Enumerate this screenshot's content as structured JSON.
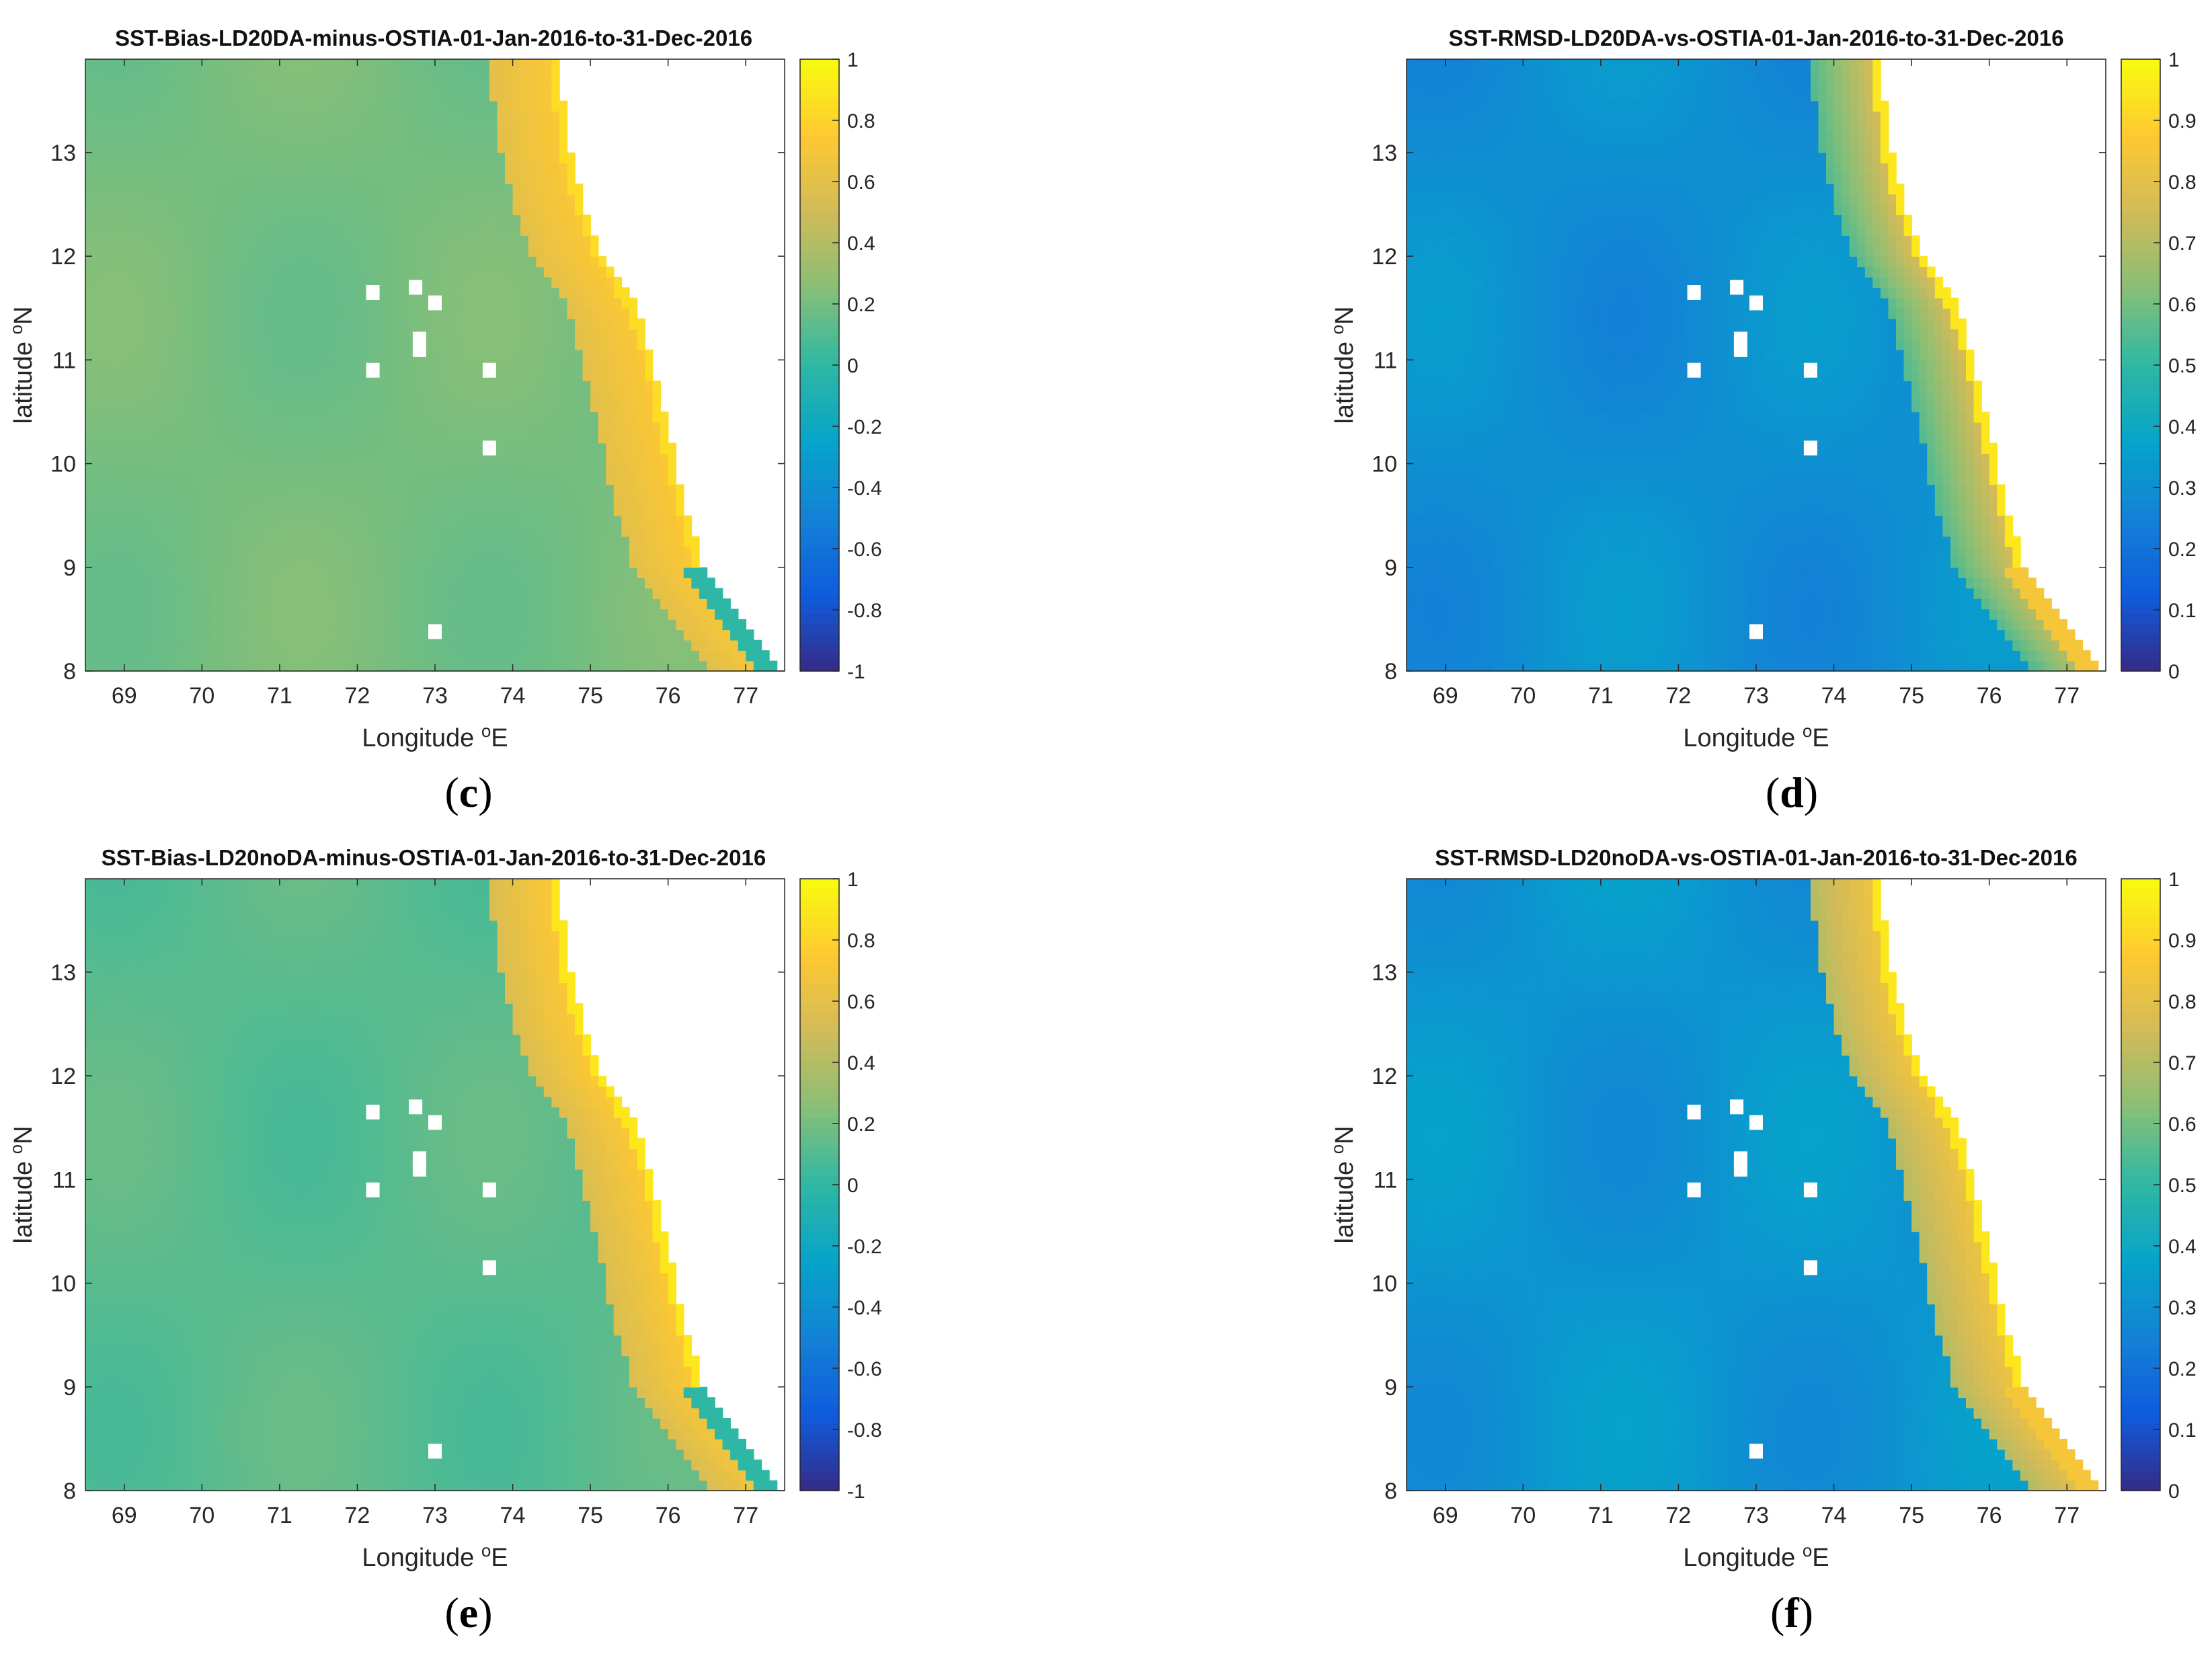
{
  "chart_data": [
    {
      "type": "heatmap",
      "panel": "c",
      "title": "SST-Bias-LD20DA-minus-OSTIA-01-Jan-2016-to-31-Dec-2016",
      "xlabel": "Longitude",
      "xlabel_sup": "o",
      "xlabel_unit": "E",
      "ylabel": "latitude",
      "ylabel_sup": "o",
      "ylabel_unit": "N",
      "xlim": [
        68.5,
        77.5
      ],
      "ylim": [
        8,
        13.9
      ],
      "xticks": [
        "69",
        "70",
        "71",
        "72",
        "73",
        "74",
        "75",
        "76",
        "77"
      ],
      "yticks": [
        "8",
        "9",
        "10",
        "11",
        "12",
        "13"
      ],
      "colorbar_range": [
        -1,
        1
      ],
      "colorbar_ticks": [
        "-1",
        "-0.8",
        "-0.6",
        "-0.4",
        "-0.2",
        "0",
        "0.2",
        "0.4",
        "0.6",
        "0.8",
        "1"
      ],
      "offshore_value": 0.2,
      "coastal_band_value": 0.6,
      "coast_edge_value": 0.85,
      "southern_coast_value": 0.0,
      "caption_letter": "c"
    },
    {
      "type": "heatmap",
      "panel": "d",
      "title": "SST-RMSD-LD20DA-vs-OSTIA-01-Jan-2016-to-31-Dec-2016",
      "xlabel": "Longitude",
      "xlabel_sup": "o",
      "xlabel_unit": "E",
      "ylabel": "latitude",
      "ylabel_sup": "o",
      "ylabel_unit": "N",
      "xlim": [
        68.5,
        77.5
      ],
      "ylim": [
        8,
        13.9
      ],
      "xticks": [
        "69",
        "70",
        "71",
        "72",
        "73",
        "74",
        "75",
        "76",
        "77"
      ],
      "yticks": [
        "8",
        "9",
        "10",
        "11",
        "12",
        "13"
      ],
      "colorbar_range": [
        0,
        1
      ],
      "colorbar_ticks": [
        "0",
        "0.1",
        "0.2",
        "0.3",
        "0.4",
        "0.5",
        "0.6",
        "0.7",
        "0.8",
        "0.9",
        "1"
      ],
      "offshore_value": 0.3,
      "coastal_band_value": 0.55,
      "coast_edge_value": 0.95,
      "southern_coast_value": 0.85,
      "caption_letter": "d"
    },
    {
      "type": "heatmap",
      "panel": "e",
      "title": "SST-Bias-LD20noDA-minus-OSTIA-01-Jan-2016-to-31-Dec-2016",
      "xlabel": "Longitude",
      "xlabel_sup": "o",
      "xlabel_unit": "E",
      "ylabel": "latitude",
      "ylabel_sup": "o",
      "ylabel_unit": "N",
      "xlim": [
        68.5,
        77.5
      ],
      "ylim": [
        8,
        13.9
      ],
      "xticks": [
        "69",
        "70",
        "71",
        "72",
        "73",
        "74",
        "75",
        "76",
        "77"
      ],
      "yticks": [
        "8",
        "9",
        "10",
        "11",
        "12",
        "13"
      ],
      "colorbar_range": [
        -1,
        1
      ],
      "colorbar_ticks": [
        "-1",
        "-0.8",
        "-0.6",
        "-0.4",
        "-0.2",
        "0",
        "0.2",
        "0.4",
        "0.6",
        "0.8",
        "1"
      ],
      "offshore_value": 0.12,
      "coastal_band_value": 0.55,
      "coast_edge_value": 0.9,
      "southern_coast_value": 0.0,
      "caption_letter": "e"
    },
    {
      "type": "heatmap",
      "panel": "f",
      "title": "SST-RMSD-LD20noDA-vs-OSTIA-01-Jan-2016-to-31-Dec-2016",
      "xlabel": "Longitude",
      "xlabel_sup": "o",
      "xlabel_unit": "E",
      "ylabel": "latitude",
      "ylabel_sup": "o",
      "ylabel_unit": "N",
      "xlim": [
        68.5,
        77.5
      ],
      "ylim": [
        8,
        13.9
      ],
      "xticks": [
        "69",
        "70",
        "71",
        "72",
        "73",
        "74",
        "75",
        "76",
        "77"
      ],
      "yticks": [
        "8",
        "9",
        "10",
        "11",
        "12",
        "13"
      ],
      "colorbar_range": [
        0,
        1
      ],
      "colorbar_ticks": [
        "0",
        "0.1",
        "0.2",
        "0.3",
        "0.4",
        "0.5",
        "0.6",
        "0.7",
        "0.8",
        "0.9",
        "1"
      ],
      "offshore_value": 0.32,
      "coastal_band_value": 0.7,
      "coast_edge_value": 0.95,
      "southern_coast_value": 0.85,
      "caption_letter": "f"
    }
  ],
  "land_mask": {
    "coastline_lon_by_lat": [
      [
        13.9,
        74.6
      ],
      [
        13.5,
        74.65
      ],
      [
        13.0,
        74.75
      ],
      [
        12.5,
        74.9
      ],
      [
        12.0,
        75.15
      ],
      [
        11.5,
        75.6
      ],
      [
        11.0,
        75.8
      ],
      [
        10.5,
        75.95
      ],
      [
        10.0,
        76.1
      ],
      [
        9.5,
        76.25
      ],
      [
        9.0,
        76.45
      ],
      [
        8.5,
        76.95
      ],
      [
        8.0,
        77.5
      ]
    ],
    "islands": [
      {
        "lon": 72.2,
        "lat": 11.65
      },
      {
        "lon": 72.75,
        "lat": 11.7
      },
      {
        "lon": 73.0,
        "lat": 11.55
      },
      {
        "lon": 72.8,
        "lat": 11.2
      },
      {
        "lon": 72.8,
        "lat": 11.1
      },
      {
        "lon": 72.2,
        "lat": 10.9
      },
      {
        "lon": 73.7,
        "lat": 10.9
      },
      {
        "lon": 73.7,
        "lat": 10.15
      },
      {
        "lon": 73.0,
        "lat": 8.38
      }
    ]
  },
  "colors": {
    "parula": [
      "#352a87",
      "#0f5cdd",
      "#1481d6",
      "#06a4ca",
      "#2eb7a4",
      "#87bf77",
      "#d1bb59",
      "#fec832",
      "#f9fb0e"
    ]
  }
}
